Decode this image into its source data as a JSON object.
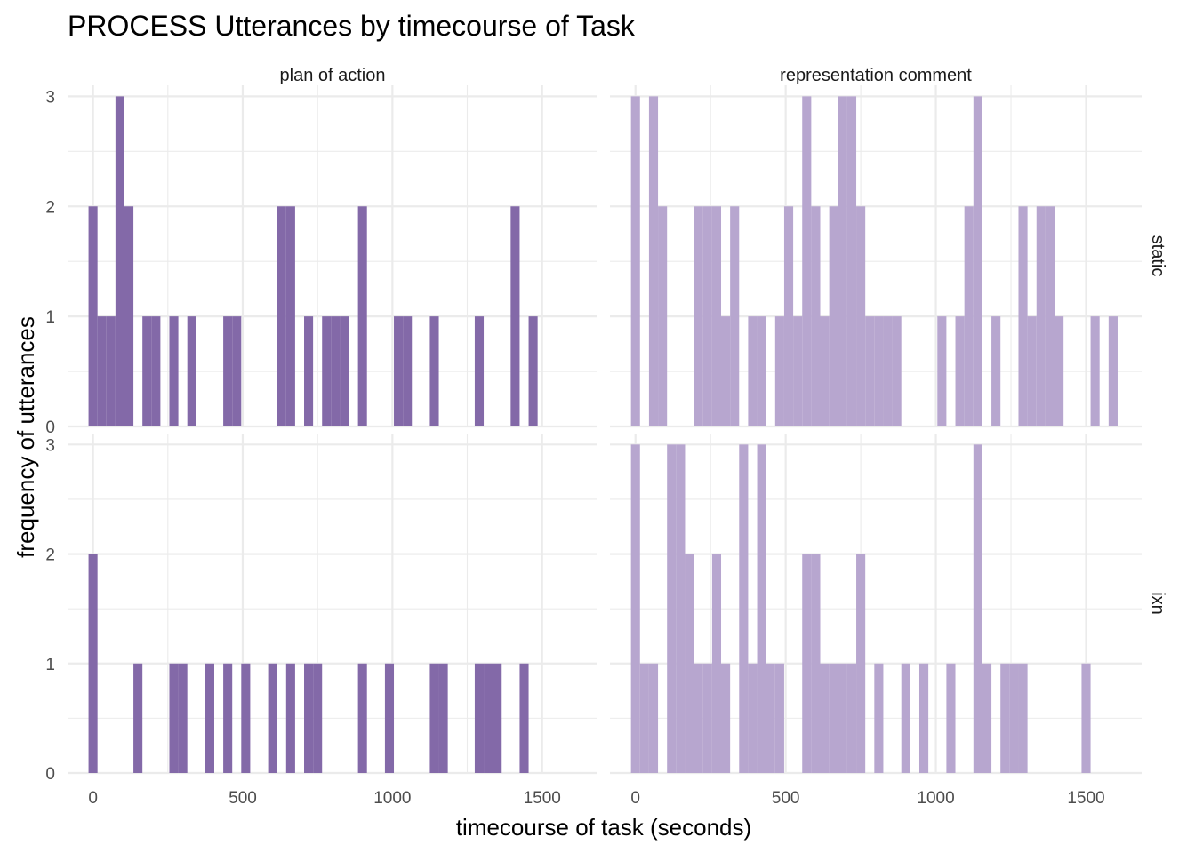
{
  "chart_data": {
    "type": "bar",
    "subtype": "faceted-histogram",
    "title": "PROCESS Utterances by timecourse of Task",
    "xlabel": "timecourse of task (seconds)",
    "ylabel": "frequency of utterances",
    "x_ticks": [
      0,
      500,
      1000,
      1500
    ],
    "y_ticks": [
      0,
      1,
      2,
      3
    ],
    "xlim": [
      -85,
      1685
    ],
    "ylim": [
      0,
      3.1
    ],
    "bin_width": 30,
    "grid": true,
    "columns": [
      "plan of action",
      "representation comment"
    ],
    "rows": [
      "static",
      "ixn"
    ],
    "colors": {
      "plan of action": "#8369a8",
      "representation comment": "#b7a6cf"
    },
    "panels": [
      {
        "row": "static",
        "column": "plan of action",
        "bins": [
          [
            0,
            2
          ],
          [
            30,
            1
          ],
          [
            60,
            1
          ],
          [
            90,
            3
          ],
          [
            120,
            2
          ],
          [
            180,
            1
          ],
          [
            210,
            1
          ],
          [
            270,
            1
          ],
          [
            330,
            1
          ],
          [
            450,
            1
          ],
          [
            480,
            1
          ],
          [
            630,
            2
          ],
          [
            660,
            2
          ],
          [
            720,
            1
          ],
          [
            780,
            1
          ],
          [
            810,
            1
          ],
          [
            840,
            1
          ],
          [
            900,
            2
          ],
          [
            1020,
            1
          ],
          [
            1050,
            1
          ],
          [
            1140,
            1
          ],
          [
            1290,
            1
          ],
          [
            1410,
            2
          ],
          [
            1470,
            1
          ]
        ]
      },
      {
        "row": "static",
        "column": "representation comment",
        "bins": [
          [
            0,
            3
          ],
          [
            60,
            3
          ],
          [
            90,
            2
          ],
          [
            210,
            2
          ],
          [
            240,
            2
          ],
          [
            270,
            2
          ],
          [
            300,
            1
          ],
          [
            330,
            2
          ],
          [
            390,
            1
          ],
          [
            420,
            1
          ],
          [
            480,
            1
          ],
          [
            510,
            2
          ],
          [
            540,
            1
          ],
          [
            570,
            3
          ],
          [
            600,
            2
          ],
          [
            630,
            1
          ],
          [
            660,
            2
          ],
          [
            690,
            3
          ],
          [
            720,
            3
          ],
          [
            750,
            2
          ],
          [
            780,
            1
          ],
          [
            810,
            1
          ],
          [
            840,
            1
          ],
          [
            870,
            1
          ],
          [
            1020,
            1
          ],
          [
            1080,
            1
          ],
          [
            1110,
            2
          ],
          [
            1140,
            3
          ],
          [
            1200,
            1
          ],
          [
            1290,
            2
          ],
          [
            1320,
            1
          ],
          [
            1350,
            2
          ],
          [
            1380,
            2
          ],
          [
            1410,
            1
          ],
          [
            1530,
            1
          ],
          [
            1590,
            1
          ]
        ]
      },
      {
        "row": "ixn",
        "column": "plan of action",
        "bins": [
          [
            0,
            2
          ],
          [
            150,
            1
          ],
          [
            270,
            1
          ],
          [
            300,
            1
          ],
          [
            390,
            1
          ],
          [
            450,
            1
          ],
          [
            510,
            1
          ],
          [
            600,
            1
          ],
          [
            660,
            1
          ],
          [
            720,
            1
          ],
          [
            750,
            1
          ],
          [
            900,
            1
          ],
          [
            990,
            1
          ],
          [
            1140,
            1
          ],
          [
            1170,
            1
          ],
          [
            1290,
            1
          ],
          [
            1320,
            1
          ],
          [
            1350,
            1
          ],
          [
            1440,
            1
          ]
        ]
      },
      {
        "row": "ixn",
        "column": "representation comment",
        "bins": [
          [
            0,
            3
          ],
          [
            30,
            1
          ],
          [
            60,
            1
          ],
          [
            120,
            3
          ],
          [
            150,
            3
          ],
          [
            180,
            2
          ],
          [
            210,
            1
          ],
          [
            240,
            1
          ],
          [
            270,
            2
          ],
          [
            300,
            1
          ],
          [
            360,
            3
          ],
          [
            390,
            1
          ],
          [
            420,
            3
          ],
          [
            450,
            1
          ],
          [
            480,
            1
          ],
          [
            570,
            2
          ],
          [
            600,
            2
          ],
          [
            630,
            1
          ],
          [
            660,
            1
          ],
          [
            690,
            1
          ],
          [
            720,
            1
          ],
          [
            750,
            2
          ],
          [
            810,
            1
          ],
          [
            900,
            1
          ],
          [
            960,
            1
          ],
          [
            1050,
            1
          ],
          [
            1140,
            3
          ],
          [
            1170,
            1
          ],
          [
            1230,
            1
          ],
          [
            1260,
            1
          ],
          [
            1290,
            1
          ],
          [
            1500,
            1
          ]
        ]
      }
    ]
  }
}
